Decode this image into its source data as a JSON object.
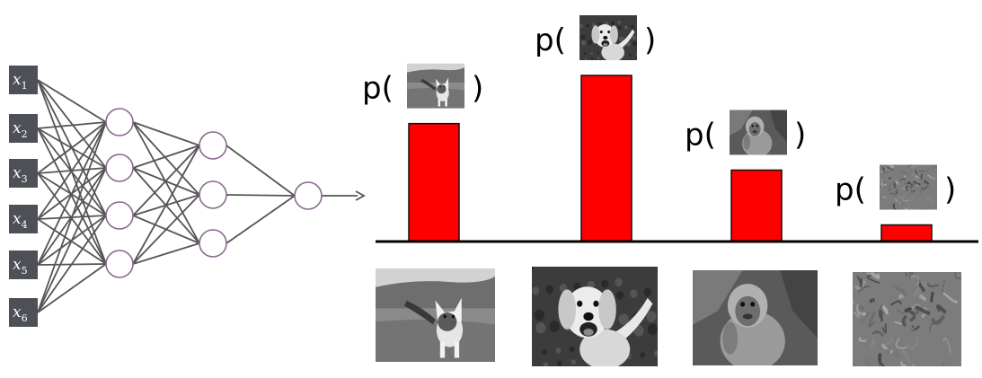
{
  "network": {
    "inputs": [
      {
        "var": "x",
        "sub": "1"
      },
      {
        "var": "x",
        "sub": "2"
      },
      {
        "var": "x",
        "sub": "3"
      },
      {
        "var": "x",
        "sub": "4"
      },
      {
        "var": "x",
        "sub": "5"
      },
      {
        "var": "x",
        "sub": "6"
      }
    ],
    "layers": [
      6,
      4,
      3,
      1
    ],
    "node_fill": "#ffffff",
    "node_stroke": "#8a6a8e",
    "edge_color": "#555555",
    "input_box_color": "#4d5057"
  },
  "chart_data": {
    "type": "bar",
    "categories": [
      "cat",
      "dog",
      "monkey",
      "noise"
    ],
    "values": [
      0.71,
      1.0,
      0.43,
      0.1
    ],
    "label_prefix": "p(",
    "label_suffix": ")",
    "bar_color": "#ff0000",
    "ylim": [
      0,
      1
    ]
  },
  "thumbnails": [
    {
      "name": "cat-image",
      "kind": "cat"
    },
    {
      "name": "dog-image",
      "kind": "dog"
    },
    {
      "name": "monkey-image",
      "kind": "monkey"
    },
    {
      "name": "noise-image",
      "kind": "noise"
    }
  ]
}
